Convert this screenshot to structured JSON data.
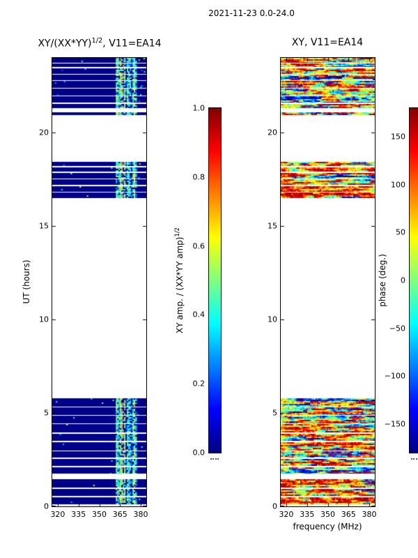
{
  "figure": {
    "title": "2021-11-23 0.0-24.0",
    "background": "#ffffff"
  },
  "chart_data": [
    {
      "type": "heatmap",
      "title": "XY/(XX*YY)^1/2, V11=EA14",
      "title_parts": {
        "pre": "XY/(XX*YY)",
        "sup": "1/2",
        "post": ", V11=EA14"
      },
      "xlabel": "",
      "ylabel": "UT (hours)",
      "xlim": [
        316,
        384
      ],
      "ylim": [
        0,
        24
      ],
      "xticks": [
        {
          "v": 320,
          "label": "320"
        },
        {
          "v": 335,
          "label": "335"
        },
        {
          "v": 350,
          "label": "350"
        },
        {
          "v": 365,
          "label": "365"
        },
        {
          "v": 380,
          "label": "380"
        }
      ],
      "yticks": [
        {
          "v": 0,
          "label": "0"
        },
        {
          "v": 5,
          "label": "5"
        },
        {
          "v": 10,
          "label": "10"
        },
        {
          "v": 15,
          "label": "15"
        },
        {
          "v": 20,
          "label": "20"
        }
      ],
      "colormap": "jet",
      "value_range": [
        0,
        1
      ],
      "base_value": 0.01,
      "stripe_mhz": [
        362,
        377
      ],
      "stripe_value_range": [
        0.12,
        0.75
      ],
      "colorbar": {
        "label": "XY amp. / (XX*YY amp)^1/2",
        "label_parts": {
          "pre": "XY amp. / (XX*YY amp)",
          "sup": "1/2"
        },
        "range": [
          0,
          1
        ],
        "ticks": [
          {
            "v": 1.0,
            "label": "1.0"
          },
          {
            "v": 0.8,
            "label": "0.8"
          },
          {
            "v": 0.6,
            "label": "0.6"
          },
          {
            "v": 0.4,
            "label": "0.4"
          },
          {
            "v": 0.2,
            "label": "0.2"
          },
          {
            "v": 0.0,
            "label": "0.0"
          }
        ]
      }
    },
    {
      "type": "heatmap",
      "title": "XY, V11=EA14",
      "title_parts": {
        "pre": "XY, V11=EA14",
        "sup": "",
        "post": ""
      },
      "xlabel": "frequency (MHz)",
      "ylabel": "",
      "xlim": [
        316,
        384
      ],
      "ylim": [
        0,
        24
      ],
      "xticks": [
        {
          "v": 320,
          "label": "320"
        },
        {
          "v": 335,
          "label": "335"
        },
        {
          "v": 350,
          "label": "350"
        },
        {
          "v": 365,
          "label": "365"
        },
        {
          "v": 380,
          "label": "380"
        }
      ],
      "yticks": [
        {
          "v": 0,
          "label": "0"
        },
        {
          "v": 5,
          "label": "5"
        },
        {
          "v": 10,
          "label": "10"
        },
        {
          "v": 15,
          "label": "15"
        },
        {
          "v": 20,
          "label": "20"
        }
      ],
      "colormap": "jet",
      "value_range": [
        -180,
        180
      ],
      "colorbar": {
        "label": "phase (deg.)",
        "range": [
          -180,
          180
        ],
        "ticks": [
          {
            "v": 150,
            "label": "150"
          },
          {
            "v": 100,
            "label": "100"
          },
          {
            "v": 50,
            "label": "50"
          },
          {
            "v": 0,
            "label": "0"
          },
          {
            "v": -50,
            "label": "−50"
          },
          {
            "v": -100,
            "label": "−100"
          },
          {
            "v": -150,
            "label": "−150"
          }
        ]
      }
    }
  ],
  "time_bands": [
    {
      "t0": 0.12,
      "t1": 0.5,
      "phase_bias": 150,
      "phase_spread": 70
    },
    {
      "t0": 0.55,
      "t1": 0.95,
      "phase_bias": 140,
      "phase_spread": 80
    },
    {
      "t0": 1.0,
      "t1": 1.45,
      "phase_bias": 130,
      "phase_spread": 90
    },
    {
      "t0": 1.75,
      "t1": 2.1,
      "phase_bias": 40,
      "phase_spread": 150
    },
    {
      "t0": 2.15,
      "t1": 2.55,
      "phase_bias": 70,
      "phase_spread": 140
    },
    {
      "t0": 2.6,
      "t1": 2.95,
      "phase_bias": 50,
      "phase_spread": 150
    },
    {
      "t0": 3.0,
      "t1": 3.45,
      "phase_bias": 80,
      "phase_spread": 130
    },
    {
      "t0": 3.5,
      "t1": 3.9,
      "phase_bias": 60,
      "phase_spread": 150
    },
    {
      "t0": 3.95,
      "t1": 4.4,
      "phase_bias": 70,
      "phase_spread": 140
    },
    {
      "t0": 4.45,
      "t1": 4.85,
      "phase_bias": 50,
      "phase_spread": 150
    },
    {
      "t0": 4.9,
      "t1": 5.3,
      "phase_bias": 60,
      "phase_spread": 140
    },
    {
      "t0": 5.35,
      "t1": 5.8,
      "phase_bias": 40,
      "phase_spread": 150
    },
    {
      "t0": 16.5,
      "t1": 16.8,
      "phase_bias": 120,
      "phase_spread": 100
    },
    {
      "t0": 16.85,
      "t1": 17.15,
      "phase_bias": 130,
      "phase_spread": 90
    },
    {
      "t0": 17.2,
      "t1": 17.5,
      "phase_bias": 110,
      "phase_spread": 110
    },
    {
      "t0": 17.55,
      "t1": 17.85,
      "phase_bias": 120,
      "phase_spread": 100
    },
    {
      "t0": 17.9,
      "t1": 18.15,
      "phase_bias": 100,
      "phase_spread": 120
    },
    {
      "t0": 18.2,
      "t1": 18.45,
      "phase_bias": 110,
      "phase_spread": 110
    },
    {
      "t0": 20.95,
      "t1": 21.1,
      "phase_bias": 0,
      "phase_spread": 160
    },
    {
      "t0": 21.3,
      "t1": 21.55,
      "phase_bias": 30,
      "phase_spread": 150
    },
    {
      "t0": 21.6,
      "t1": 21.95,
      "phase_bias": -20,
      "phase_spread": 150
    },
    {
      "t0": 22.0,
      "t1": 22.35,
      "phase_bias": 20,
      "phase_spread": 150
    },
    {
      "t0": 22.4,
      "t1": 22.75,
      "phase_bias": 60,
      "phase_spread": 140
    },
    {
      "t0": 22.8,
      "t1": 23.1,
      "phase_bias": -40,
      "phase_spread": 150
    },
    {
      "t0": 23.15,
      "t1": 23.45,
      "phase_bias": 80,
      "phase_spread": 140
    },
    {
      "t0": 23.5,
      "t1": 23.7,
      "phase_bias": -10,
      "phase_spread": 160
    },
    {
      "t0": 23.75,
      "t1": 24.0,
      "phase_bias": 100,
      "phase_spread": 130
    }
  ]
}
